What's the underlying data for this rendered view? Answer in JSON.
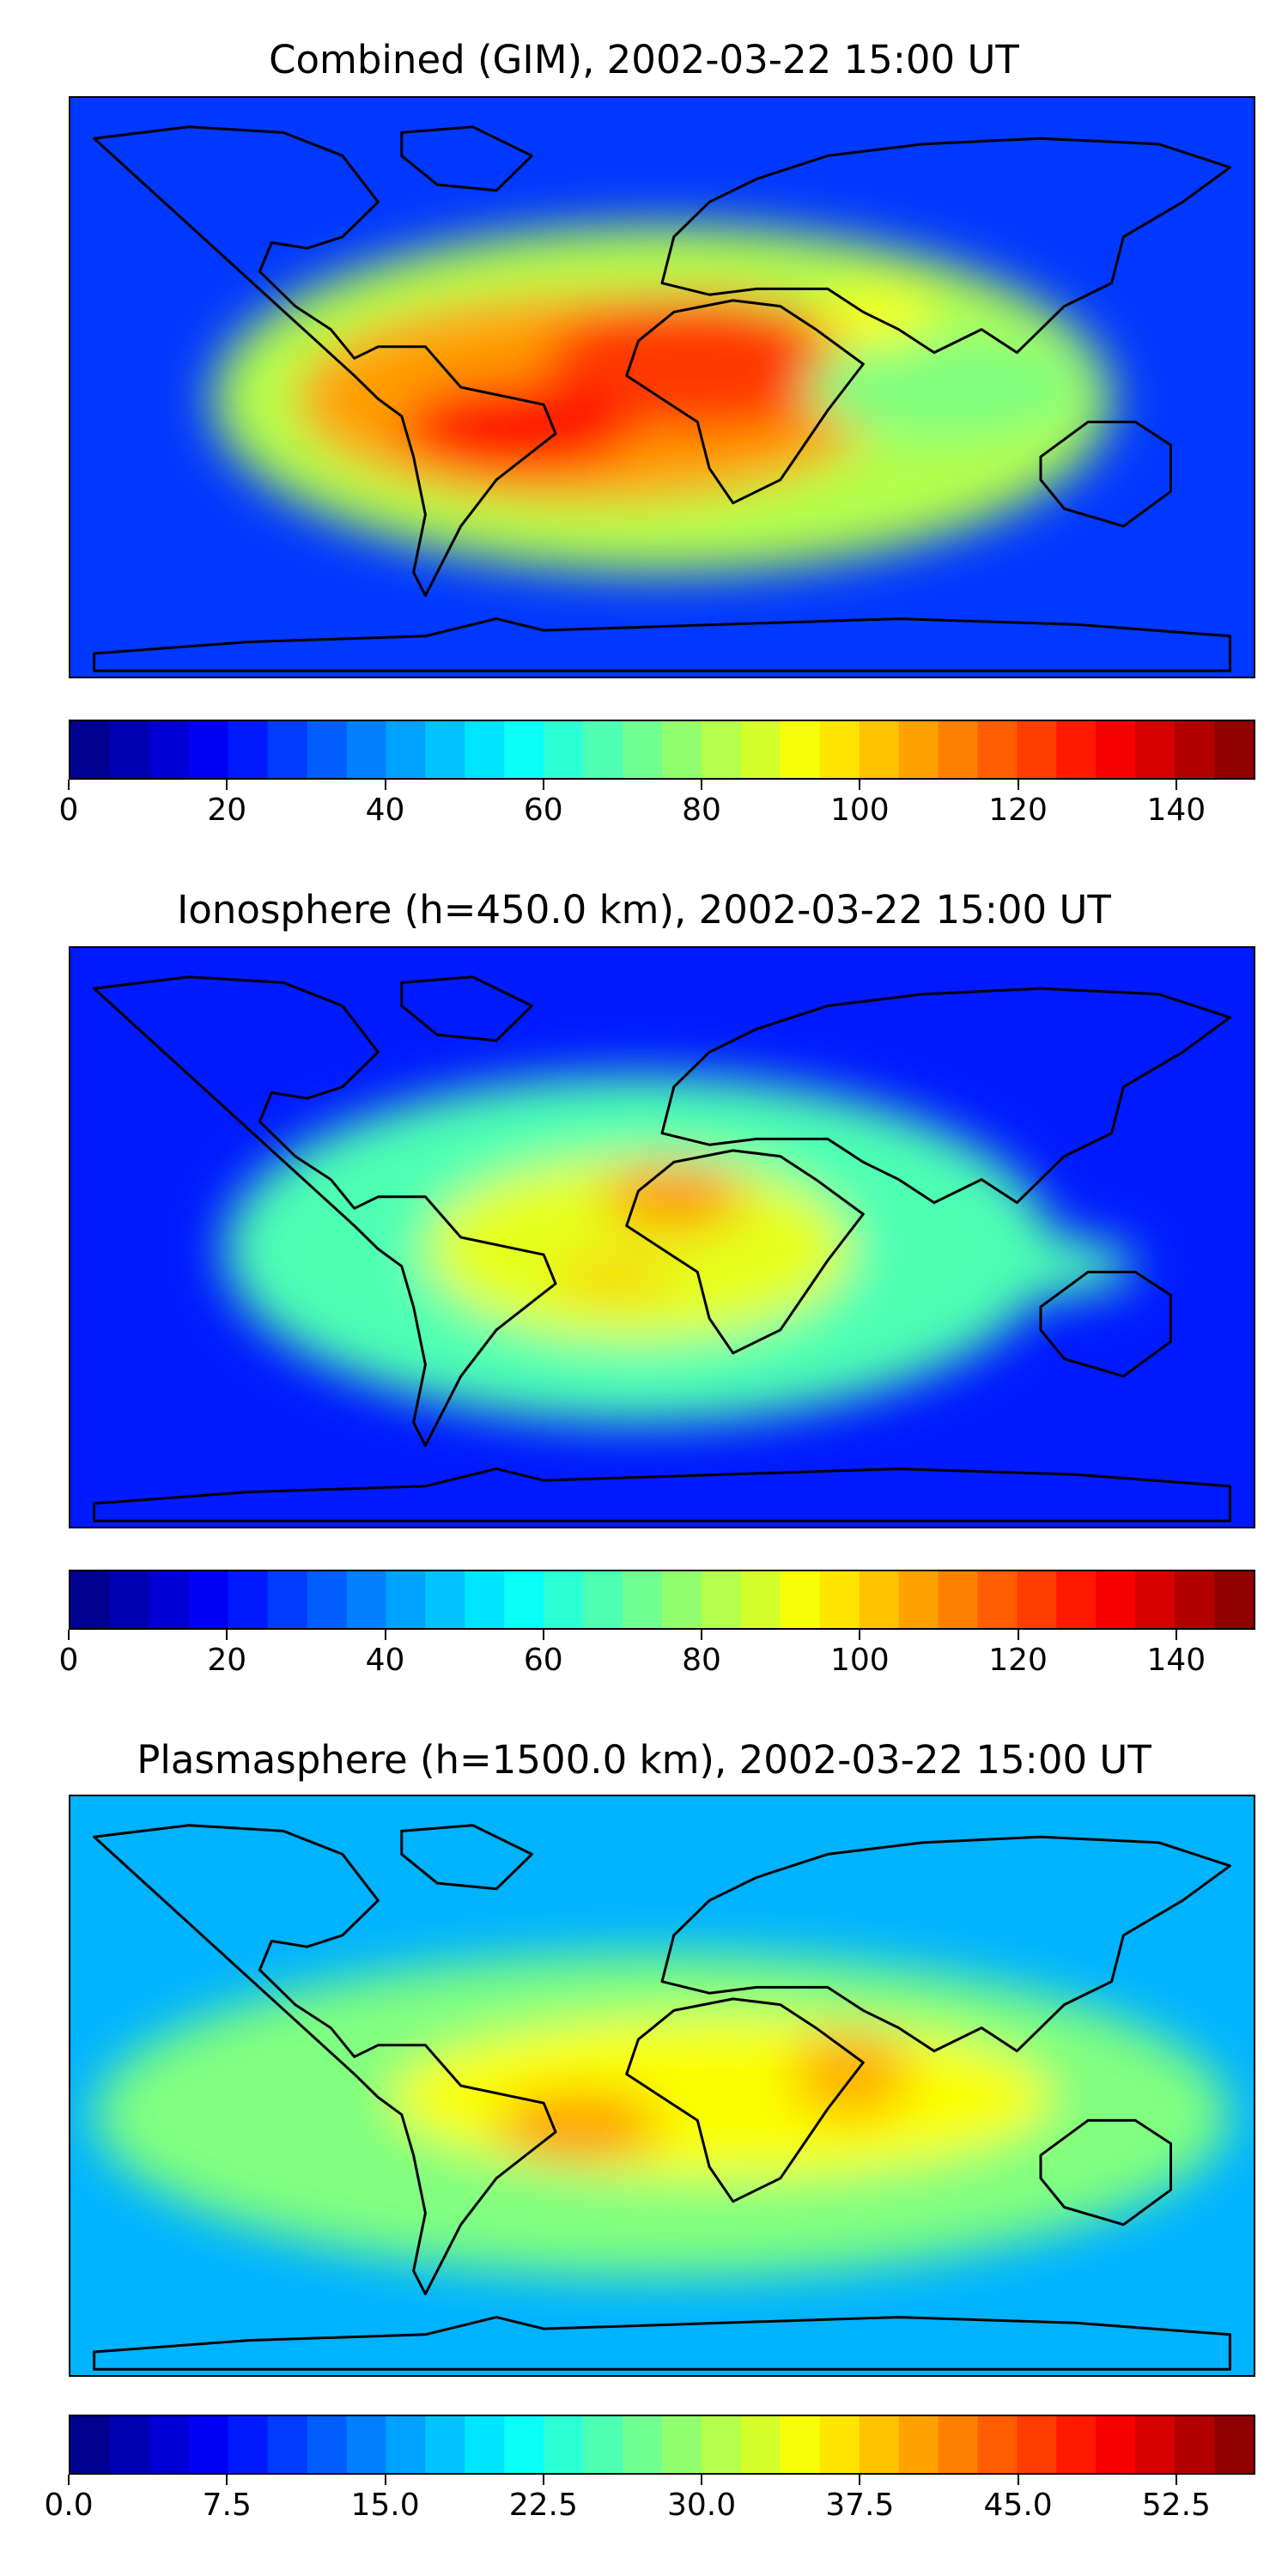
{
  "panels": [
    {
      "title": "Combined (GIM), 2002-03-22 15:00 UT",
      "colorbar_ticks": [
        "0",
        "20",
        "40",
        "60",
        "80",
        "100",
        "120",
        "140"
      ],
      "colorbar_range": [
        0,
        150
      ],
      "color_levels": 30
    },
    {
      "title": "Ionosphere  (h=450.0 km), 2002-03-22 15:00 UT",
      "colorbar_ticks": [
        "0",
        "20",
        "40",
        "60",
        "80",
        "100",
        "120",
        "140"
      ],
      "colorbar_range": [
        0,
        150
      ],
      "color_levels": 30
    },
    {
      "title": "Plasmasphere (h=1500.0 km), 2002-03-22 15:00 UT",
      "colorbar_ticks": [
        "0.0",
        "7.5",
        "15.0",
        "22.5",
        "30.0",
        "37.5",
        "45.0",
        "52.5"
      ],
      "colorbar_range": [
        0,
        56.25
      ],
      "color_levels": 30
    }
  ],
  "colormap": "jet"
}
